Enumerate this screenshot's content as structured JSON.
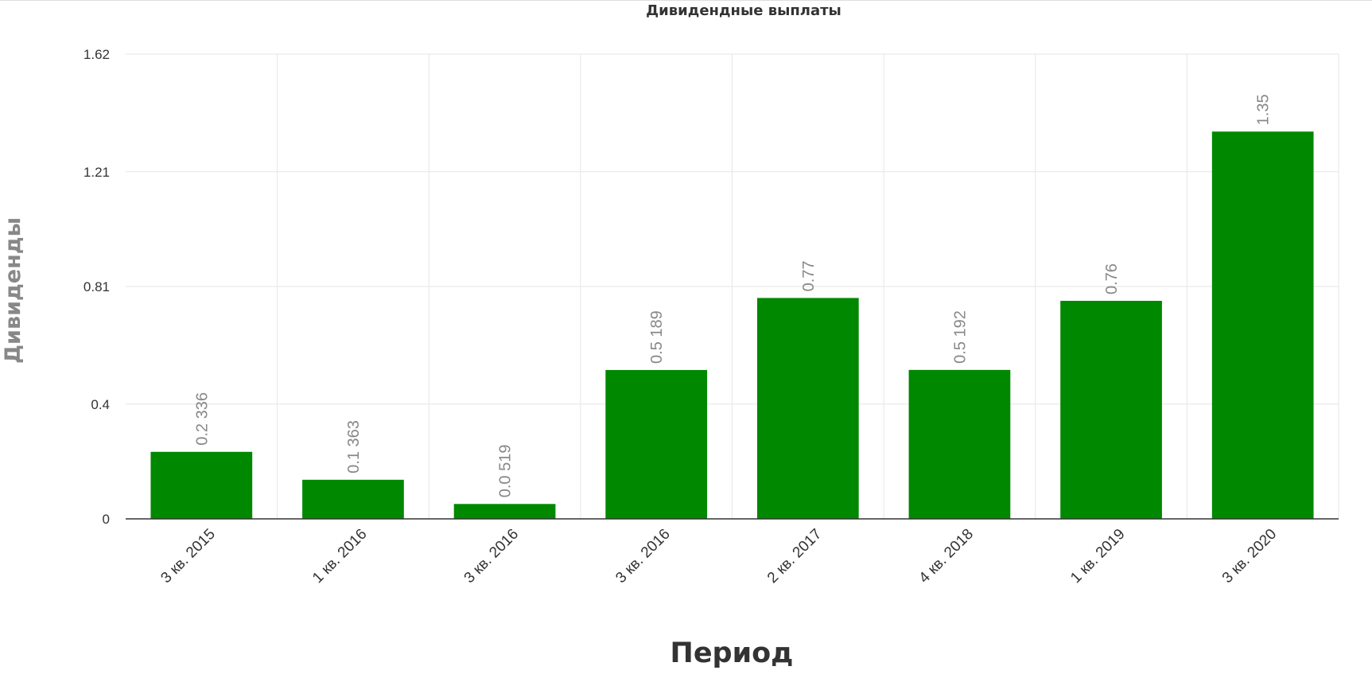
{
  "chart_data": {
    "type": "bar",
    "title": "Дивидендные выплаты",
    "xlabel": "Период",
    "ylabel": "Дивиденды",
    "categories": [
      "3 кв. 2015",
      "1 кв. 2016",
      "3 кв. 2016",
      "3 кв. 2016",
      "2 кв. 2017",
      "4 кв. 2018",
      "1 кв. 2019",
      "3 кв. 2020"
    ],
    "values": [
      0.2336,
      0.1363,
      0.0519,
      0.5189,
      0.77,
      0.5192,
      0.76,
      1.35
    ],
    "data_labels": [
      "0.2 336",
      "0.1 363",
      "0.0 519",
      "0.5 189",
      "0.77",
      "0.5 192",
      "0.76",
      "1.35"
    ],
    "y_ticks": [
      0,
      0.4,
      0.81,
      1.21,
      1.62
    ],
    "y_tick_labels": [
      "0",
      "0.4",
      "0.81",
      "1.21",
      "1.62"
    ],
    "ylim": [
      0,
      1.62
    ],
    "grid": true,
    "legend": "none",
    "bar_color": "#008800"
  }
}
